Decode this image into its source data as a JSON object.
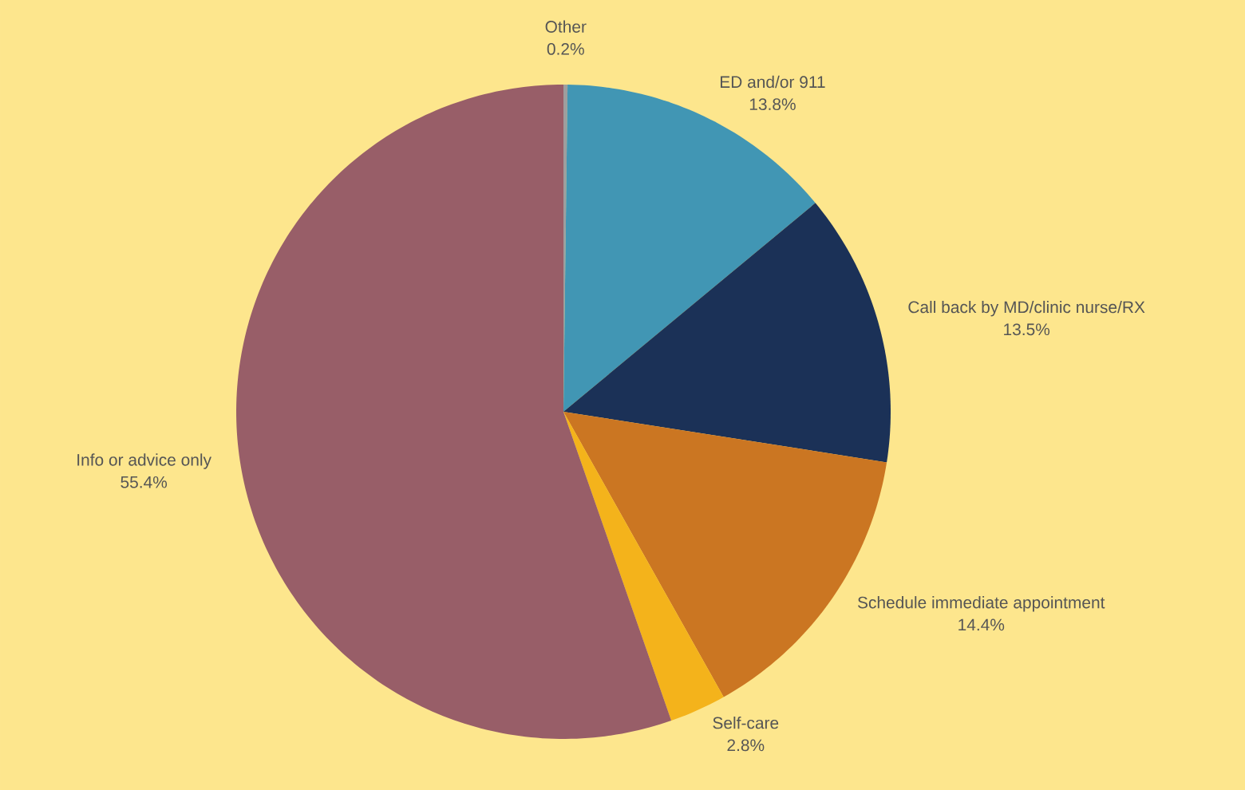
{
  "chart_data": {
    "type": "pie",
    "categories": [
      "Other",
      "ED and/or 911",
      "Call back by MD/clinic nurse/RX",
      "Schedule immediate appointment",
      "Self-care",
      "Info or advice only"
    ],
    "values": [
      0.2,
      13.8,
      13.5,
      14.4,
      2.8,
      55.4
    ],
    "value_labels": [
      "0.2%",
      "13.8%",
      "13.5%",
      "14.4%",
      "2.8%",
      "55.4%"
    ],
    "colors": [
      "#9e9e9e",
      "#4196b4",
      "#1b3157",
      "#cb7622",
      "#f4b31b",
      "#985e68"
    ]
  }
}
